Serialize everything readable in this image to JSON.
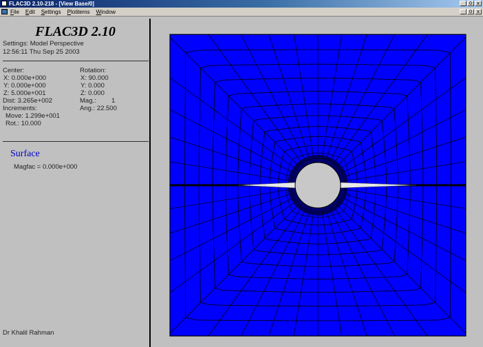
{
  "window": {
    "title": "FLAC3D 2.10-218 - [View Base/0]",
    "buttons": [
      "_",
      "0",
      "x"
    ],
    "child_buttons": [
      "_",
      "0",
      "x"
    ]
  },
  "menu": [
    "File",
    "Edit",
    "Settings",
    "Plotitems",
    "Window"
  ],
  "info": {
    "app_title": "FLAC3D 2.10",
    "settings": "Settings: Model Perspective",
    "timestamp": "12:56:11 Thu Sep 25 2003",
    "center_label": "Center:",
    "center_x": "X: 0.000e+000",
    "center_y": "Y: 0.000e+000",
    "center_z": "Z: 5.000e+001",
    "dist": "Dist: 3.265e+002",
    "increments_label": "Increments:",
    "move": "Move: 1.299e+001",
    "rot": "Rot.: 10.000",
    "rotation_label": "Rotation:",
    "rot_x": "X: 90.000",
    "rot_y": "Y: 0.000",
    "rot_z": "Z: 0.000",
    "mag": "Mag.:",
    "mag_value": "1",
    "ang": "Ang.: 22.500",
    "surface": "Surface",
    "magfac": "Magfac = 0.000e+000",
    "author": "Dr Khalil Rahman"
  },
  "plot": {
    "mesh_fill": "#0000ff",
    "mesh_lines": "#000000",
    "hole_fill": "#c8c8c8",
    "fracture_fill": "#e8e8e8"
  }
}
